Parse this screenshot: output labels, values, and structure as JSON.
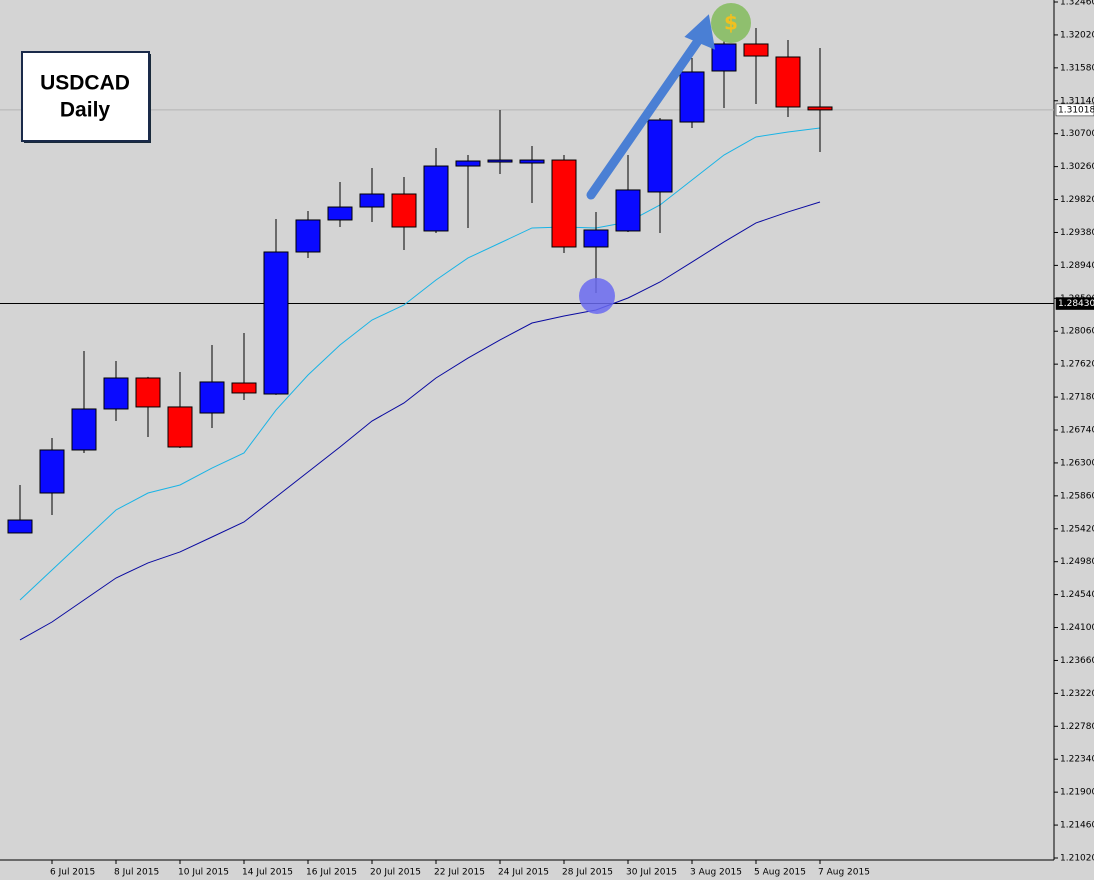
{
  "chart_data": {
    "type": "candlestick",
    "title": "USDCAD",
    "subtitle": "Daily",
    "icon_text": "$",
    "categories": [
      null,
      "6 Jul 2015",
      null,
      "8 Jul 2015",
      null,
      "10 Jul 2015",
      null,
      "14 Jul 2015",
      null,
      "16 Jul 2015",
      null,
      "20 Jul 2015",
      null,
      "22 Jul 2015",
      null,
      "24 Jul 2015",
      null,
      "28 Jul 2015",
      null,
      "30 Jul 2015",
      null,
      "3 Aug 2015",
      null,
      "5 Aug 2015",
      null,
      "7 Aug 2015"
    ],
    "open": [
      1.25364,
      1.25898,
      1.26473,
      1.27021,
      1.27435,
      1.27048,
      1.26967,
      1.27368,
      1.27221,
      1.29119,
      1.29547,
      1.2972,
      1.29894,
      1.294,
      1.30268,
      1.30335,
      1.30308,
      1.30348,
      1.29186,
      1.294,
      1.29921,
      1.30856,
      1.31538,
      1.31899,
      1.31725,
      1.31057
    ],
    "high": [
      1.26005,
      1.26633,
      1.27796,
      1.27662,
      1.2745,
      1.27515,
      1.27876,
      1.28037,
      1.2956,
      1.29667,
      1.30054,
      1.30242,
      1.30121,
      1.30509,
      1.30415,
      1.31017,
      1.30536,
      1.30415,
      1.29654,
      1.30415,
      1.3091,
      1.31712,
      1.32032,
      1.32113,
      1.31952,
      1.31845
    ],
    "low": [
      1.25364,
      1.25604,
      1.26433,
      1.2686,
      1.26647,
      1.265,
      1.26767,
      1.27141,
      1.2721,
      1.29039,
      1.29453,
      1.2952,
      1.29146,
      1.29373,
      1.2944,
      1.30161,
      1.29774,
      1.29106,
      1.28571,
      1.29386,
      1.29373,
      1.30776,
      1.31043,
      1.31097,
      1.30923,
      1.30455
    ],
    "close": [
      1.25537,
      1.26473,
      1.27021,
      1.27435,
      1.27048,
      1.26513,
      1.27382,
      1.27235,
      1.29119,
      1.29547,
      1.2972,
      1.29894,
      1.29453,
      1.30268,
      1.30335,
      1.30348,
      1.30348,
      1.29186,
      1.29413,
      1.29948,
      1.30883,
      1.31525,
      1.31899,
      1.31738,
      1.31057,
      1.31018
    ],
    "up_color": "#0a0aff",
    "down_color": "#ff0000",
    "moving_averages": [
      {
        "color": "#19b4e6",
        "values": [
          1.24468,
          1.24869,
          1.2527,
          1.25671,
          1.25898,
          1.26005,
          1.26232,
          1.26433,
          1.27007,
          1.27475,
          1.27876,
          1.2821,
          1.28411,
          1.28745,
          1.29039,
          1.29239,
          1.2944,
          1.29453,
          1.2944,
          1.2952,
          1.29747,
          1.30081,
          1.30415,
          1.30656,
          1.30723,
          1.30776
        ]
      },
      {
        "color": "#0a0aa0",
        "values": [
          1.23934,
          1.24174,
          1.24468,
          1.24762,
          1.24963,
          1.2511,
          1.2531,
          1.25511,
          1.25845,
          1.26179,
          1.26513,
          1.2686,
          1.27101,
          1.27435,
          1.27702,
          1.27943,
          1.2817,
          1.28264,
          1.28344,
          1.28504,
          1.28718,
          1.28985,
          1.29253,
          1.29507,
          1.29654,
          1.29787
        ]
      }
    ],
    "reference_lines": [
      {
        "value": 1.31018,
        "label": "1.31018",
        "color": "#b4b4b4"
      },
      {
        "value": 1.2843,
        "label": "1.28430",
        "color": "#000000"
      }
    ],
    "ylim": [
      1.2102,
      1.3246
    ],
    "yticks": [
      {
        "value": 1.3246,
        "label": "1.32460"
      },
      {
        "value": 1.3202,
        "label": "1.32020"
      },
      {
        "value": 1.3158,
        "label": "1.31580"
      },
      {
        "value": 1.3114,
        "label": "1.31140"
      },
      {
        "value": 1.307,
        "label": "1.30700"
      },
      {
        "value": 1.3026,
        "label": "1.30260"
      },
      {
        "value": 1.2982,
        "label": "1.29820"
      },
      {
        "value": 1.2938,
        "label": "1.29380"
      },
      {
        "value": 1.2894,
        "label": "1.28940"
      },
      {
        "value": 1.285,
        "label": "1.28500"
      },
      {
        "value": 1.2806,
        "label": "1.28060"
      },
      {
        "value": 1.2762,
        "label": "1.27620"
      },
      {
        "value": 1.2718,
        "label": "1.27180"
      },
      {
        "value": 1.2674,
        "label": "1.26740"
      },
      {
        "value": 1.263,
        "label": "1.26300"
      },
      {
        "value": 1.2586,
        "label": "1.25860"
      },
      {
        "value": 1.2542,
        "label": "1.25420"
      },
      {
        "value": 1.2498,
        "label": "1.24980"
      },
      {
        "value": 1.2454,
        "label": "1.24540"
      },
      {
        "value": 1.241,
        "label": "1.24100"
      },
      {
        "value": 1.2366,
        "label": "1.23660"
      },
      {
        "value": 1.2322,
        "label": "1.23220"
      },
      {
        "value": 1.2278,
        "label": "1.22780"
      },
      {
        "value": 1.2234,
        "label": "1.22340"
      },
      {
        "value": 1.219,
        "label": "1.21900"
      },
      {
        "value": 1.2146,
        "label": "1.21460"
      },
      {
        "value": 1.2102,
        "label": "1.21020"
      }
    ]
  }
}
